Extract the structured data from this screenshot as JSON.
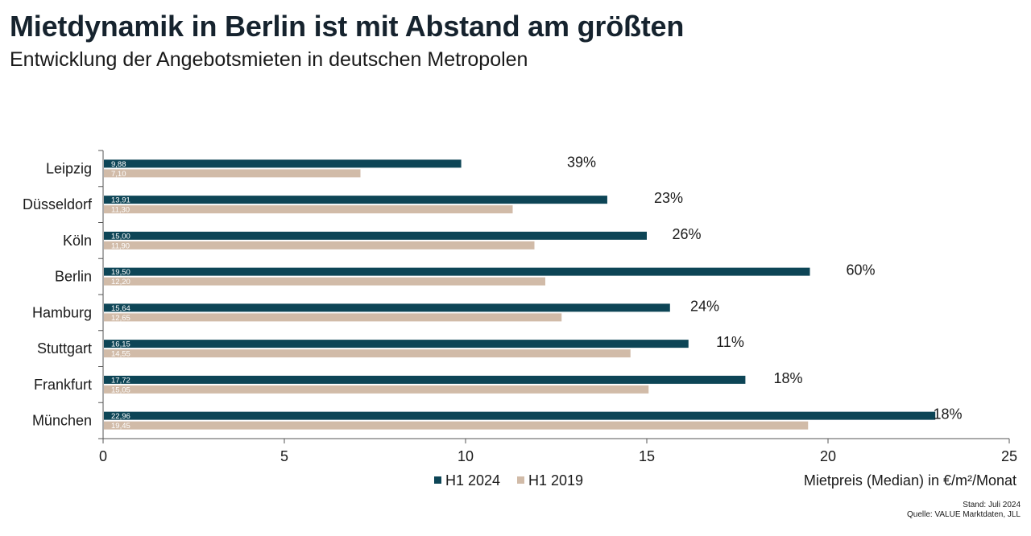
{
  "header": {
    "title": "Mietdynamik in Berlin ist mit Abstand am größten",
    "subtitle": "Entwicklung der Angebotsmieten in deutschen Metropolen"
  },
  "footer": {
    "stand": "Stand: Juli 2024",
    "source": "Quelle: VALUE Marktdaten, JLL"
  },
  "colors": {
    "h1_2024": "#0d4556",
    "h1_2019": "#d1bba8",
    "axis": "#555555"
  },
  "chart_data": {
    "type": "bar",
    "orientation": "horizontal",
    "categories": [
      "Leipzig",
      "Düsseldorf",
      "Köln",
      "Berlin",
      "Hamburg",
      "Stuttgart",
      "Frankfurt",
      "München"
    ],
    "series": [
      {
        "name": "H1 2024",
        "values": [
          9.88,
          13.91,
          15.0,
          19.5,
          15.64,
          16.15,
          17.72,
          22.96
        ],
        "labels": [
          "9,88",
          "13,91",
          "15,00",
          "19,50",
          "15,64",
          "16,15",
          "17,72",
          "22,96"
        ]
      },
      {
        "name": "H1 2019",
        "values": [
          7.1,
          11.3,
          11.9,
          12.2,
          12.65,
          14.55,
          15.05,
          19.45
        ],
        "labels": [
          "7,10",
          "11,30",
          "11,90",
          "12,20",
          "12,65",
          "14,55",
          "15,05",
          "19,45"
        ]
      }
    ],
    "change_labels": [
      "39%",
      "23%",
      "26%",
      "60%",
      "24%",
      "11%",
      "18%",
      "18%"
    ],
    "change_label_x": [
      13.2,
      15.6,
      16.1,
      20.9,
      16.6,
      17.3,
      18.9,
      23.3
    ],
    "xlim": [
      0,
      25
    ],
    "xticks": [
      0,
      5,
      10,
      15,
      20,
      25
    ],
    "xlabel": "Mietpreis (Median) in €/m²/Monat",
    "legend_position": "bottom"
  }
}
